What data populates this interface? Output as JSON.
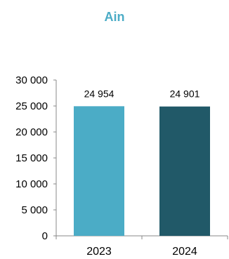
{
  "chart_data": {
    "type": "bar",
    "title": "Ain",
    "categories": [
      "2023",
      "2024"
    ],
    "values": [
      24954,
      24901
    ],
    "data_labels": [
      "24 954",
      "24 901"
    ],
    "y_ticks": [
      0,
      5000,
      10000,
      15000,
      20000,
      25000,
      30000
    ],
    "y_tick_labels": [
      "0",
      "5 000",
      "10 000",
      "15 000",
      "20 000",
      "25 000",
      "30 000"
    ],
    "ylim": [
      0,
      30000
    ],
    "grid": false,
    "colors": {
      "title": "#4BACC6",
      "bars": [
        "#4BACC6",
        "#215968"
      ],
      "axis": "#888888"
    }
  }
}
